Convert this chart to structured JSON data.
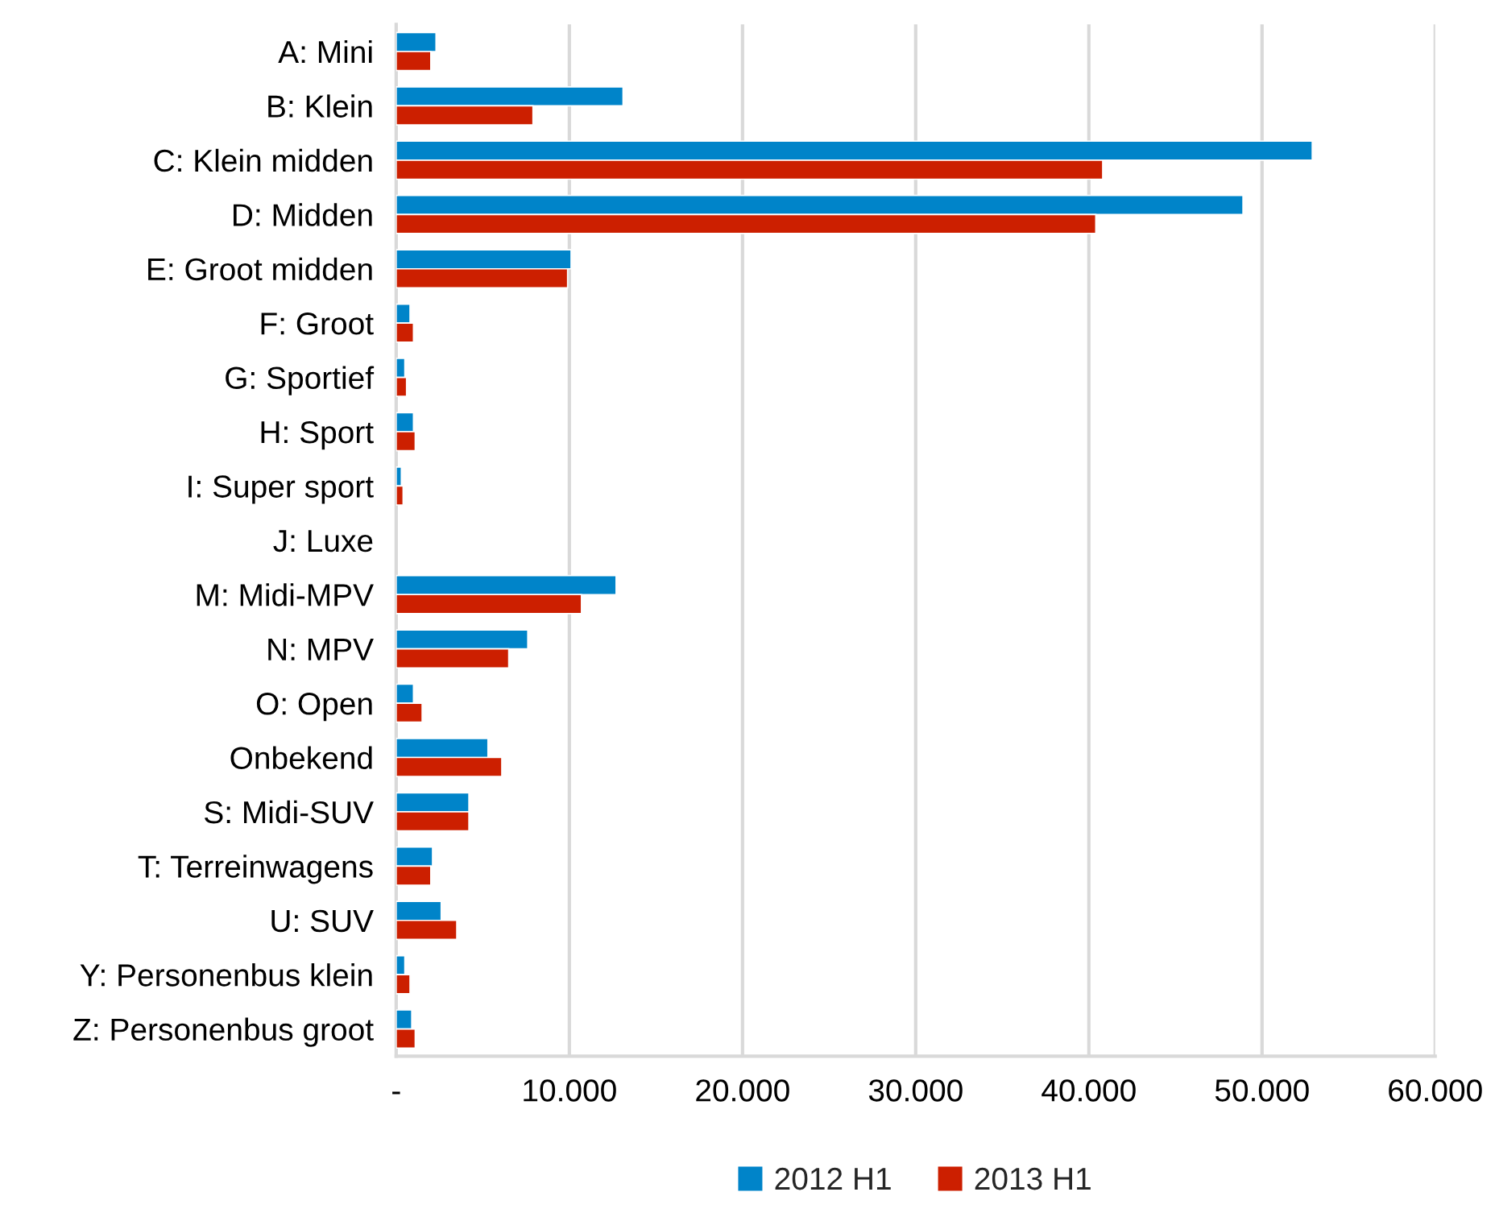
{
  "chart_data": {
    "type": "bar",
    "orientation": "horizontal",
    "categories": [
      "A: Mini",
      "B: Klein",
      "C: Klein midden",
      "D: Midden",
      "E: Groot midden",
      "F: Groot",
      "G: Sportief",
      "H: Sport",
      "I: Super sport",
      "J: Luxe",
      "M: Midi-MPV",
      "N: MPV",
      "O: Open",
      "Onbekend",
      "S: Midi-SUV",
      "T: Terreinwagens",
      "U: SUV",
      "Y: Personenbus klein",
      "Z: Personenbus groot"
    ],
    "series": [
      {
        "name": "2012 H1",
        "color": "#0084c9",
        "values": [
          2300,
          13100,
          52900,
          48900,
          10100,
          800,
          500,
          1000,
          300,
          null,
          12700,
          7600,
          1000,
          5300,
          4200,
          2100,
          2600,
          500,
          900
        ]
      },
      {
        "name": "2013 H1",
        "color": "#cc1f00",
        "values": [
          2000,
          7900,
          40800,
          40400,
          9900,
          1000,
          600,
          1100,
          400,
          null,
          10700,
          6500,
          1500,
          6100,
          4200,
          2000,
          3500,
          800,
          1100
        ]
      }
    ],
    "xlim": [
      0,
      60000
    ],
    "xticks": [
      {
        "value": 0,
        "label": "-"
      },
      {
        "value": 10000,
        "label": "10.000"
      },
      {
        "value": 20000,
        "label": "20.000"
      },
      {
        "value": 30000,
        "label": "30.000"
      },
      {
        "value": 40000,
        "label": "40.000"
      },
      {
        "value": 50000,
        "label": "50.000"
      },
      {
        "value": 60000,
        "label": "60.000"
      }
    ],
    "grid": "x",
    "legend": "bottom"
  }
}
